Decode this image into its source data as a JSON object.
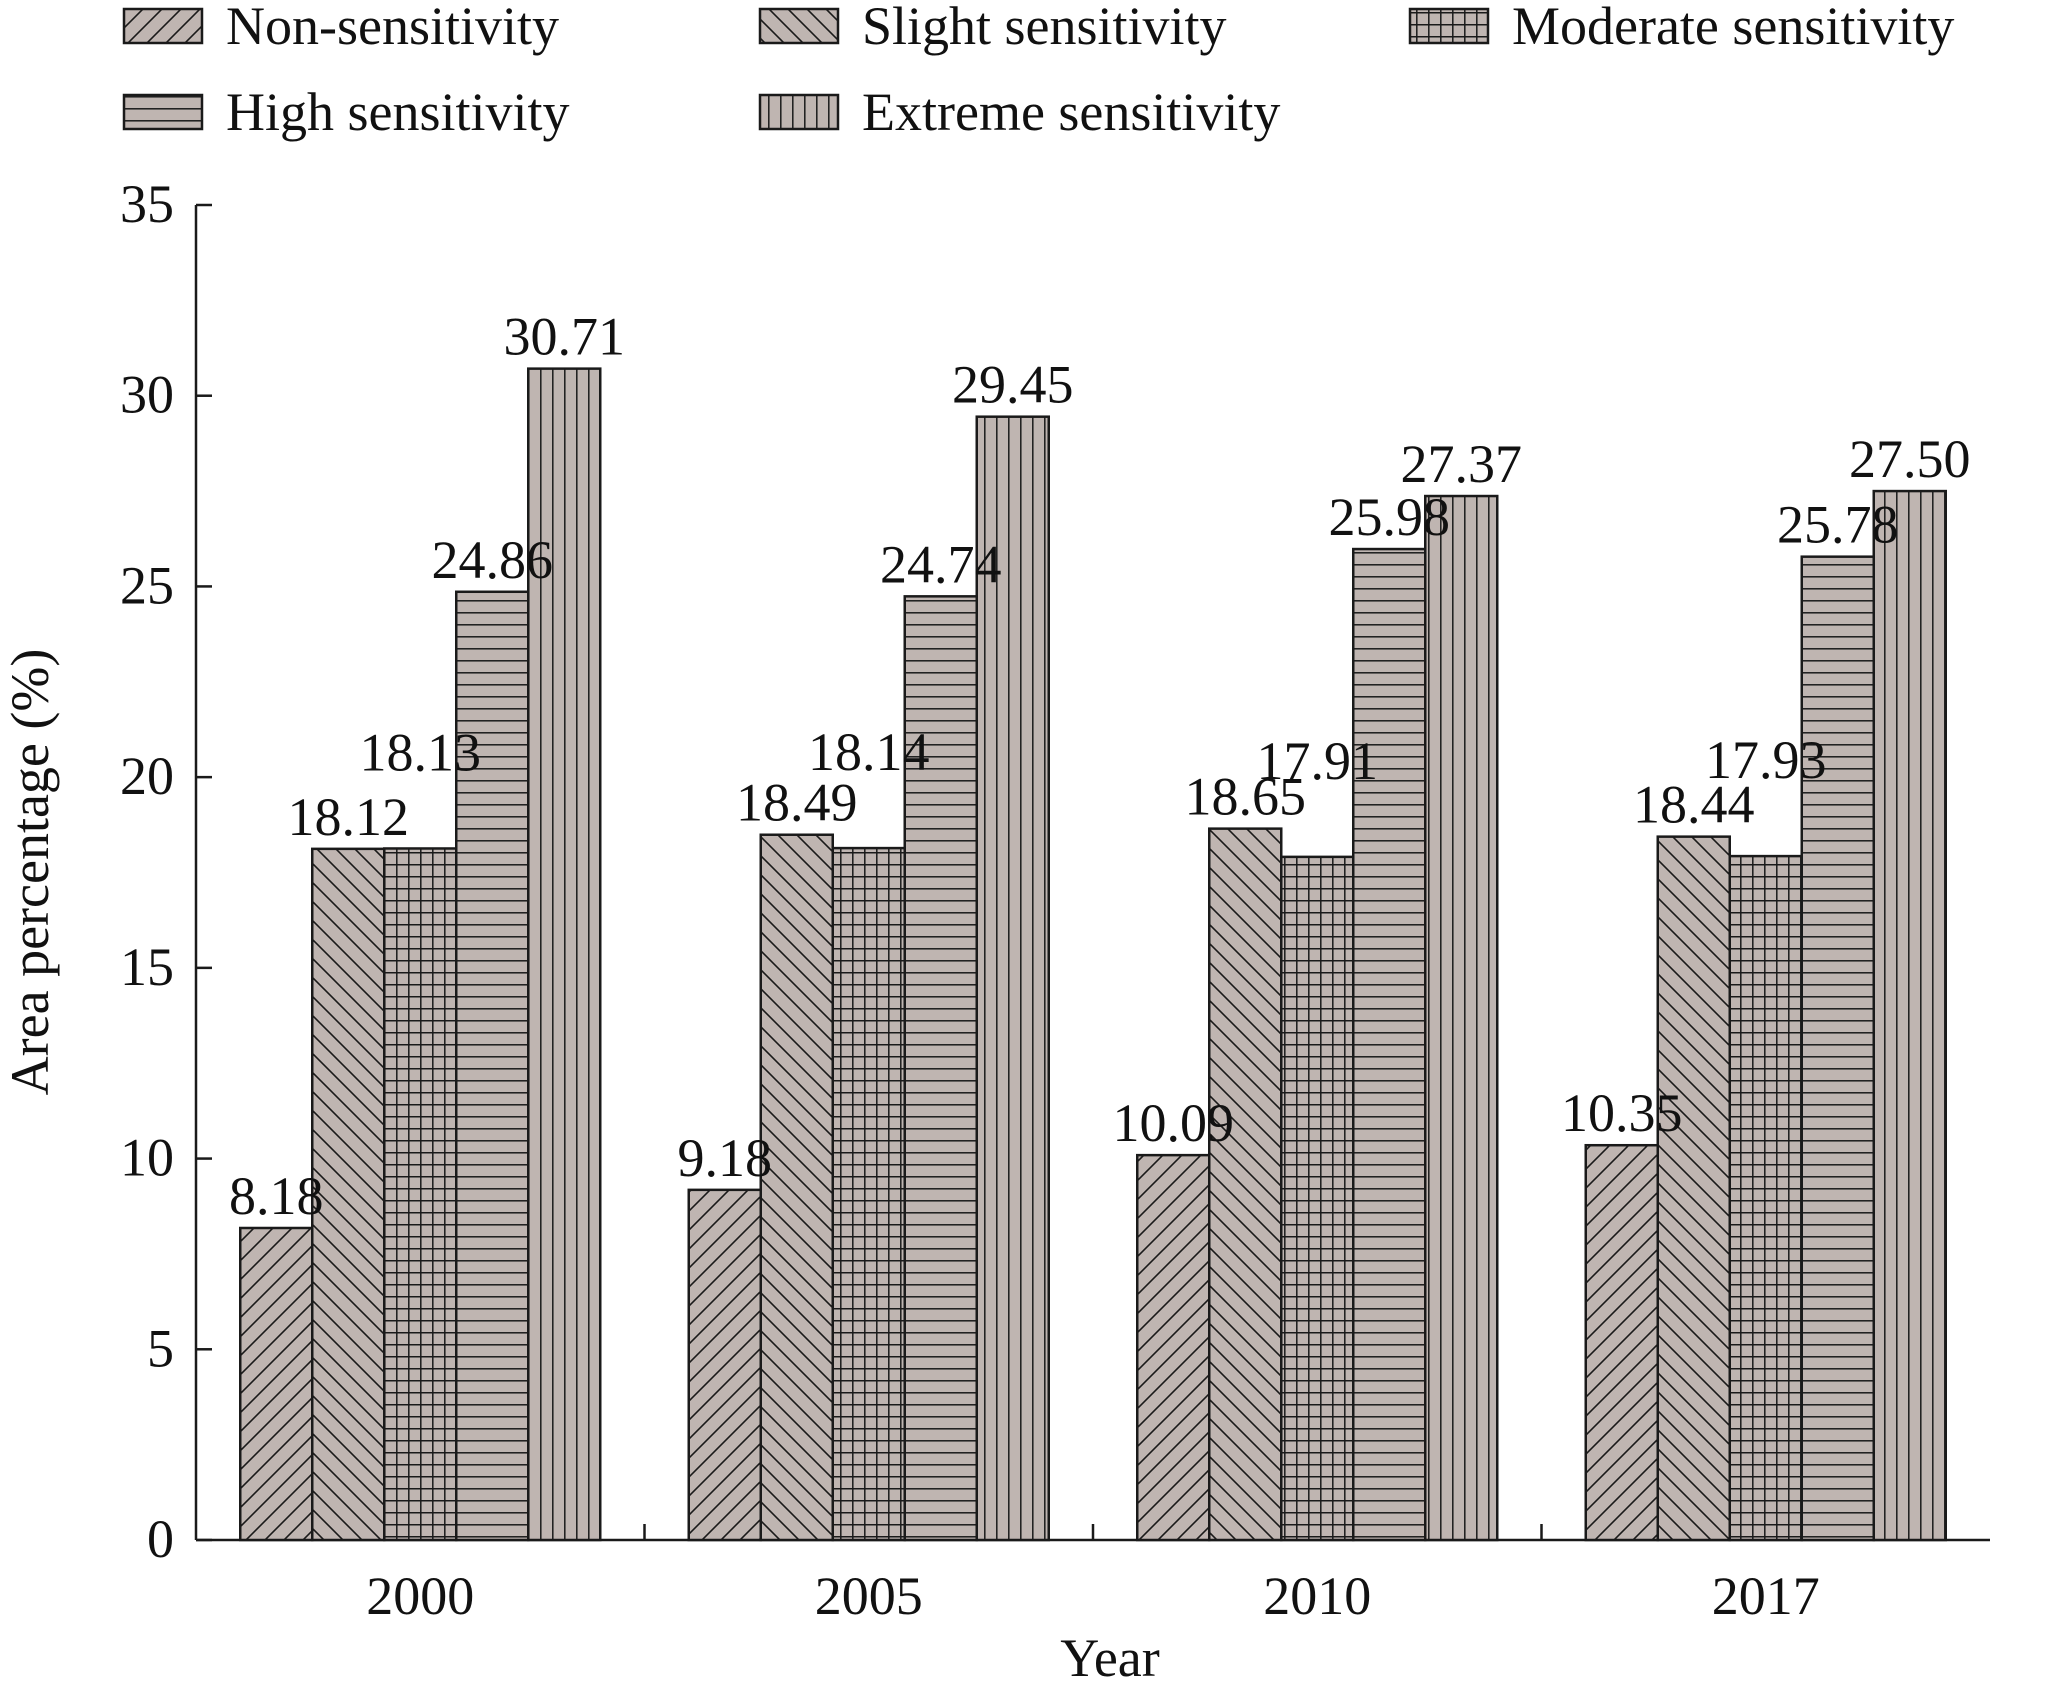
{
  "chart_data": {
    "type": "bar",
    "xlabel": "Year",
    "ylabel": "Area percentage (%)",
    "ylim": [
      0,
      35
    ],
    "yticks": [
      "0",
      "5",
      "10",
      "15",
      "20",
      "25",
      "30",
      "35"
    ],
    "grid": false,
    "legend_position": "top",
    "categories": [
      "2000",
      "2005",
      "2010",
      "2017"
    ],
    "series": [
      {
        "name": "Non-sensitivity",
        "values": [
          8.18,
          9.18,
          10.09,
          10.35
        ],
        "labels": [
          "8.18",
          "9.18",
          "10.09",
          "10.35"
        ],
        "pattern": "diag-up"
      },
      {
        "name": "Slight sensitivity",
        "values": [
          18.12,
          18.49,
          18.65,
          18.44
        ],
        "labels": [
          "18.12",
          "18.49",
          "18.65",
          "18.44"
        ],
        "pattern": "diag-down"
      },
      {
        "name": "Moderate sensitivity",
        "values": [
          18.13,
          18.14,
          17.91,
          17.93
        ],
        "labels": [
          "18.13",
          "18.14",
          "17.91",
          "17.93"
        ],
        "pattern": "grid"
      },
      {
        "name": "High sensitivity",
        "values": [
          24.86,
          24.74,
          25.98,
          25.78
        ],
        "labels": [
          "24.86",
          "24.74",
          "25.98",
          "25.78"
        ],
        "pattern": "horizontal"
      },
      {
        "name": "Extreme sensitivity",
        "values": [
          30.71,
          29.45,
          27.37,
          27.5
        ],
        "labels": [
          "30.71",
          "29.45",
          "27.37",
          "27.50"
        ],
        "pattern": "vertical"
      }
    ],
    "colors": {
      "bar_fill": "#bfb5b1",
      "bar_stroke": "#1a1a1a",
      "axis": "#1a1a1a",
      "text": "#111111"
    }
  }
}
